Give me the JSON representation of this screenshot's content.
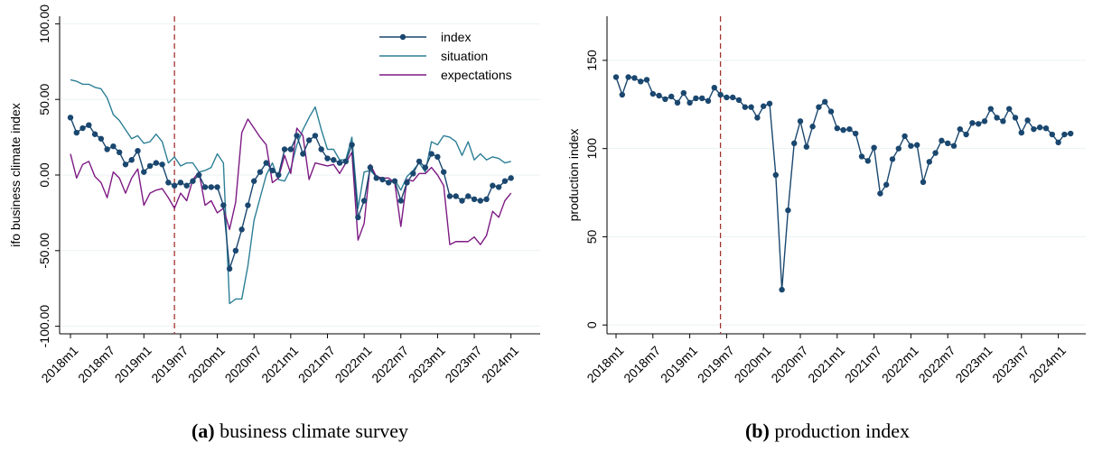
{
  "colors": {
    "index": "#1a476f",
    "situation": "#2c7f96",
    "expectations": "#7d1a83",
    "vline": "#a0342e",
    "axis": "#000000",
    "grid": "#eaf2f3"
  },
  "captions": {
    "a_label": "(a)",
    "a_text": " business climate survey",
    "b_label": "(b)",
    "b_text": " production index"
  },
  "chart_data": [
    {
      "type": "line",
      "title": "",
      "ylabel": "ifo business climate index",
      "xlabel": "",
      "x_start": "2018m1",
      "x_end": "2024m4",
      "x_ticks": [
        "2018m1",
        "2018m7",
        "2019m1",
        "2019m7",
        "2020m1",
        "2020m7",
        "2021m1",
        "2021m7",
        "2022m1",
        "2022m7",
        "2023m1",
        "2023m7",
        "2024m1"
      ],
      "y_ticks": [
        "100.00",
        "50.00",
        "0.00",
        "-50.00",
        "-100.00"
      ],
      "y_tick_values": [
        100,
        50,
        0,
        -50,
        -100
      ],
      "ylim": [
        -105,
        105
      ],
      "vline_x": "2019m6",
      "legend": {
        "position": "top-right",
        "entries": [
          "index",
          "situation",
          "expectations"
        ]
      },
      "series": [
        {
          "name": "index",
          "marker": "circle",
          "values": [
            38,
            28,
            31,
            33,
            27,
            24,
            17,
            19,
            15,
            7,
            10,
            16,
            2,
            6,
            8,
            7,
            -5,
            -7,
            -5,
            -7,
            -4,
            0,
            -8,
            -8,
            -8,
            -20,
            -62,
            -50,
            -36,
            -20,
            -4,
            2,
            8,
            3,
            0,
            17,
            17,
            26,
            14,
            23,
            26,
            17,
            11,
            10,
            8,
            9,
            20,
            -28,
            -17,
            5,
            -2,
            -3,
            -5,
            -4,
            -17,
            -5,
            1,
            9,
            5,
            14,
            12,
            2,
            -14,
            -14,
            -17,
            -14,
            -16,
            -17,
            -16,
            -7,
            -8,
            -4,
            -2
          ]
        },
        {
          "name": "situation",
          "marker": "none",
          "values": [
            63,
            62,
            60,
            60,
            58,
            57,
            51,
            40,
            36,
            30,
            24,
            26,
            21,
            22,
            27,
            22,
            8,
            12,
            6,
            8,
            8,
            2,
            3,
            5,
            14,
            8,
            -85,
            -82,
            -82,
            -60,
            -30,
            -15,
            0,
            8,
            -3,
            -4,
            4,
            20,
            30,
            38,
            45,
            30,
            17,
            17,
            10,
            10,
            25,
            -22,
            2,
            3,
            -1,
            -3,
            -5,
            -3,
            -10,
            -1,
            3,
            8,
            2,
            22,
            20,
            26,
            25,
            22,
            13,
            22,
            10,
            14,
            10,
            12,
            11,
            8,
            9
          ]
        },
        {
          "name": "expectations",
          "marker": "none",
          "values": [
            14,
            -2,
            7,
            9,
            -1,
            -5,
            -15,
            2,
            -2,
            -12,
            -2,
            4,
            -20,
            -12,
            -10,
            -9,
            -15,
            -22,
            -12,
            -17,
            -3,
            2,
            -20,
            -17,
            -25,
            -22,
            -36,
            -18,
            28,
            37,
            31,
            25,
            20,
            -5,
            -2,
            13,
            1,
            31,
            26,
            -3,
            8,
            7,
            6,
            7,
            1,
            8,
            15,
            -43,
            -32,
            7,
            -1,
            -2,
            -2,
            -5,
            -34,
            -3,
            -4,
            1,
            1,
            5,
            0,
            -7,
            -46,
            -44,
            -44,
            -44,
            -41,
            -46,
            -40,
            -24,
            -28,
            -17,
            -12
          ]
        }
      ]
    },
    {
      "type": "line",
      "title": "",
      "ylabel": "production index",
      "xlabel": "",
      "x_start": "2018m1",
      "x_end": "2024m4",
      "x_ticks": [
        "2018m1",
        "2018m7",
        "2019m1",
        "2019m7",
        "2020m1",
        "2020m7",
        "2021m1",
        "2021m7",
        "2022m1",
        "2022m7",
        "2023m1",
        "2023m7",
        "2024m1"
      ],
      "y_ticks": [
        "150",
        "100",
        "50",
        "0"
      ],
      "y_tick_values": [
        150,
        100,
        50,
        0
      ],
      "ylim": [
        -5,
        175
      ],
      "vline_x": "2019m6",
      "legend": null,
      "series": [
        {
          "name": "",
          "marker": "circle",
          "values": [
            140.5,
            130.5,
            140.5,
            140,
            138,
            139,
            131,
            130,
            128,
            129.5,
            126,
            131.5,
            126,
            128.5,
            128.5,
            127,
            134.5,
            130.5,
            129,
            129,
            127.5,
            123.5,
            123.5,
            117.5,
            124,
            125.5,
            85,
            20,
            65,
            103,
            115.5,
            101,
            112.5,
            123.5,
            126.5,
            121,
            111.5,
            110.5,
            111,
            108.5,
            95.5,
            93,
            100.5,
            74.5,
            79.5,
            94,
            100,
            107,
            101.5,
            102,
            81,
            92.5,
            97.5,
            104.5,
            103,
            101.5,
            111,
            108,
            114.5,
            114,
            115.5,
            122.5,
            117.5,
            115.5,
            122.5,
            117.5,
            109,
            116,
            111,
            112,
            111.5,
            108,
            103.5,
            108,
            108.5
          ]
        }
      ]
    }
  ]
}
